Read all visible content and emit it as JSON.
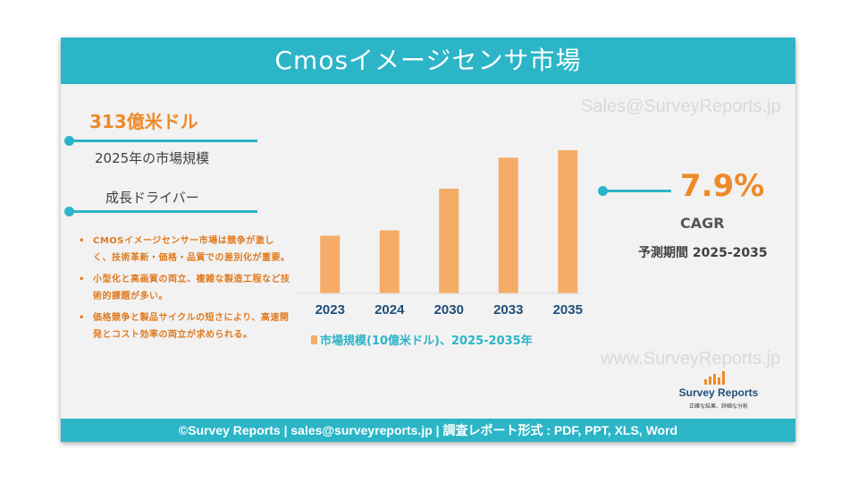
{
  "header": {
    "title": "Cmosイメージセンサ市場"
  },
  "watermarks": {
    "top": "Sales@SurveyReports.jp",
    "bottom": "www.SurveyReports.jp"
  },
  "market_size": {
    "value": "313億米ドル",
    "label": "2025年の市場規模"
  },
  "drivers": {
    "title": "成長ドライバー",
    "items": [
      "CMOSイメージセンサー市場は競争が激しく、技術革新・価格・品質での差別化が重要。",
      "小型化と高画質の両立、複雑な製造工程など技術的課題が多い。",
      "価格競争と製品サイクルの短さにより、高速開発とコスト効率の両立が求められる。"
    ]
  },
  "cagr": {
    "value": "7.9%",
    "label": "CAGR",
    "period": "予測期間 2025-2035"
  },
  "logo": {
    "name": "Survey Reports",
    "tagline": "正確な結果、詳細な分析"
  },
  "footer": {
    "text": "©Survey Reports | sales@surveyreports.jp |  調査レポート形式 : PDF, PPT, XLS, Word"
  },
  "colors": {
    "accent": "#2bb5c7",
    "bar": "#f5ac67",
    "highlight": "#ee8a2a"
  },
  "chart_data": {
    "type": "bar",
    "categories": [
      "2023",
      "2024",
      "2030",
      "2033",
      "2035"
    ],
    "values": [
      27,
      29.5,
      49,
      63.5,
      67
    ],
    "legend": "市場規模(10億米ドル)、2025-2035年",
    "title": "",
    "xlabel": "",
    "ylabel": "",
    "ylim": [
      0,
      72
    ],
    "grid": false,
    "value_labels": false
  }
}
